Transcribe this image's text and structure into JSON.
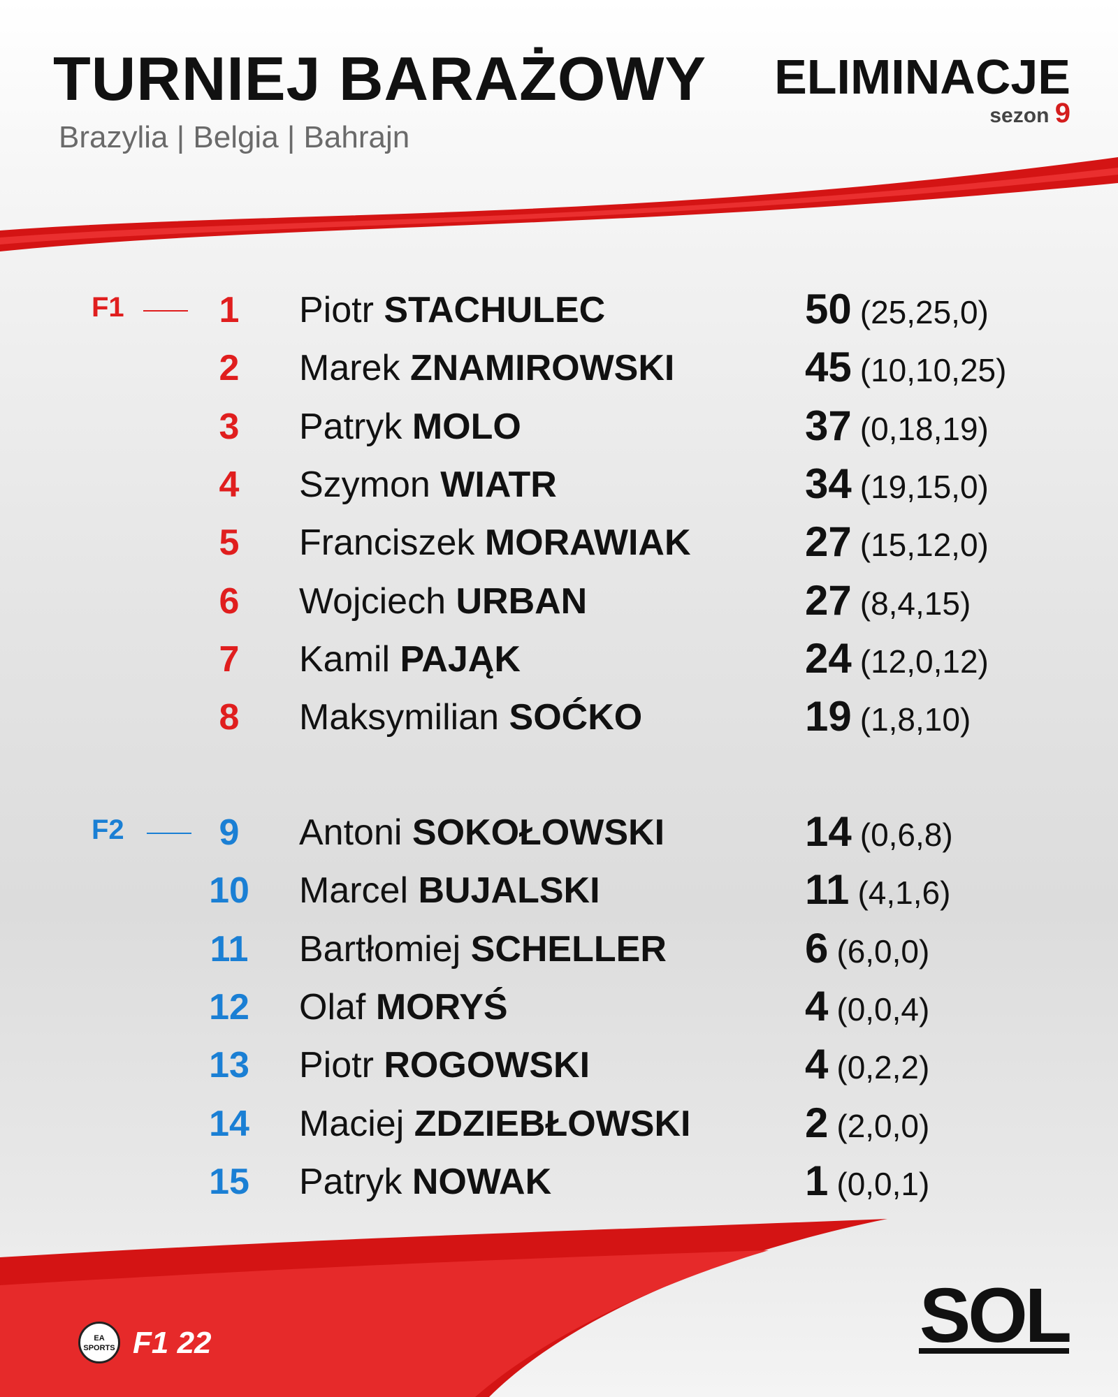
{
  "header": {
    "title": "TURNIEJ BARAŻOWY",
    "subtitle": "Brazylia | Belgia | Bahrajn",
    "stage": "ELIMINACJE",
    "season_label": "sezon",
    "season_number": "9"
  },
  "groups": [
    {
      "label": "F1",
      "color": "#e01e1e",
      "rows": [
        {
          "position": 1,
          "first_name": "Piotr",
          "last_name": "STACHULEC",
          "points": 50,
          "breakdown": "(25,25,0)"
        },
        {
          "position": 2,
          "first_name": "Marek",
          "last_name": "ZNAMIROWSKI",
          "points": 45,
          "breakdown": "(10,10,25)"
        },
        {
          "position": 3,
          "first_name": "Patryk",
          "last_name": "MOLO",
          "points": 37,
          "breakdown": "(0,18,19)"
        },
        {
          "position": 4,
          "first_name": "Szymon",
          "last_name": "WIATR",
          "points": 34,
          "breakdown": "(19,15,0)"
        },
        {
          "position": 5,
          "first_name": "Franciszek",
          "last_name": "MORAWIAK",
          "points": 27,
          "breakdown": "(15,12,0)"
        },
        {
          "position": 6,
          "first_name": "Wojciech",
          "last_name": "URBAN",
          "points": 27,
          "breakdown": "(8,4,15)"
        },
        {
          "position": 7,
          "first_name": "Kamil",
          "last_name": "PAJĄK",
          "points": 24,
          "breakdown": "(12,0,12)"
        },
        {
          "position": 8,
          "first_name": "Maksymilian",
          "last_name": "SOĆKO",
          "points": 19,
          "breakdown": "(1,8,10)"
        }
      ]
    },
    {
      "label": "F2",
      "color": "#1a7fd4",
      "rows": [
        {
          "position": 9,
          "first_name": "Antoni",
          "last_name": "SOKOŁOWSKI",
          "points": 14,
          "breakdown": "(0,6,8)"
        },
        {
          "position": 10,
          "first_name": "Marcel",
          "last_name": "BUJALSKI",
          "points": 11,
          "breakdown": "(4,1,6)"
        },
        {
          "position": 11,
          "first_name": "Bartłomiej",
          "last_name": "SCHELLER",
          "points": 6,
          "breakdown": "(6,0,0)"
        },
        {
          "position": 12,
          "first_name": "Olaf",
          "last_name": "MORYŚ",
          "points": 4,
          "breakdown": "(0,0,4)"
        },
        {
          "position": 13,
          "first_name": "Piotr",
          "last_name": "ROGOWSKI",
          "points": 4,
          "breakdown": "(0,2,2)"
        },
        {
          "position": 14,
          "first_name": "Maciej",
          "last_name": "ZDZIEBŁOWSKI",
          "points": 2,
          "breakdown": "(2,0,0)"
        },
        {
          "position": 15,
          "first_name": "Patryk",
          "last_name": "NOWAK",
          "points": 1,
          "breakdown": "(0,0,1)"
        }
      ]
    }
  ],
  "footer": {
    "brand": "SOL",
    "ea_logo": "EA SPORTS",
    "game_logo": "F1 22"
  }
}
